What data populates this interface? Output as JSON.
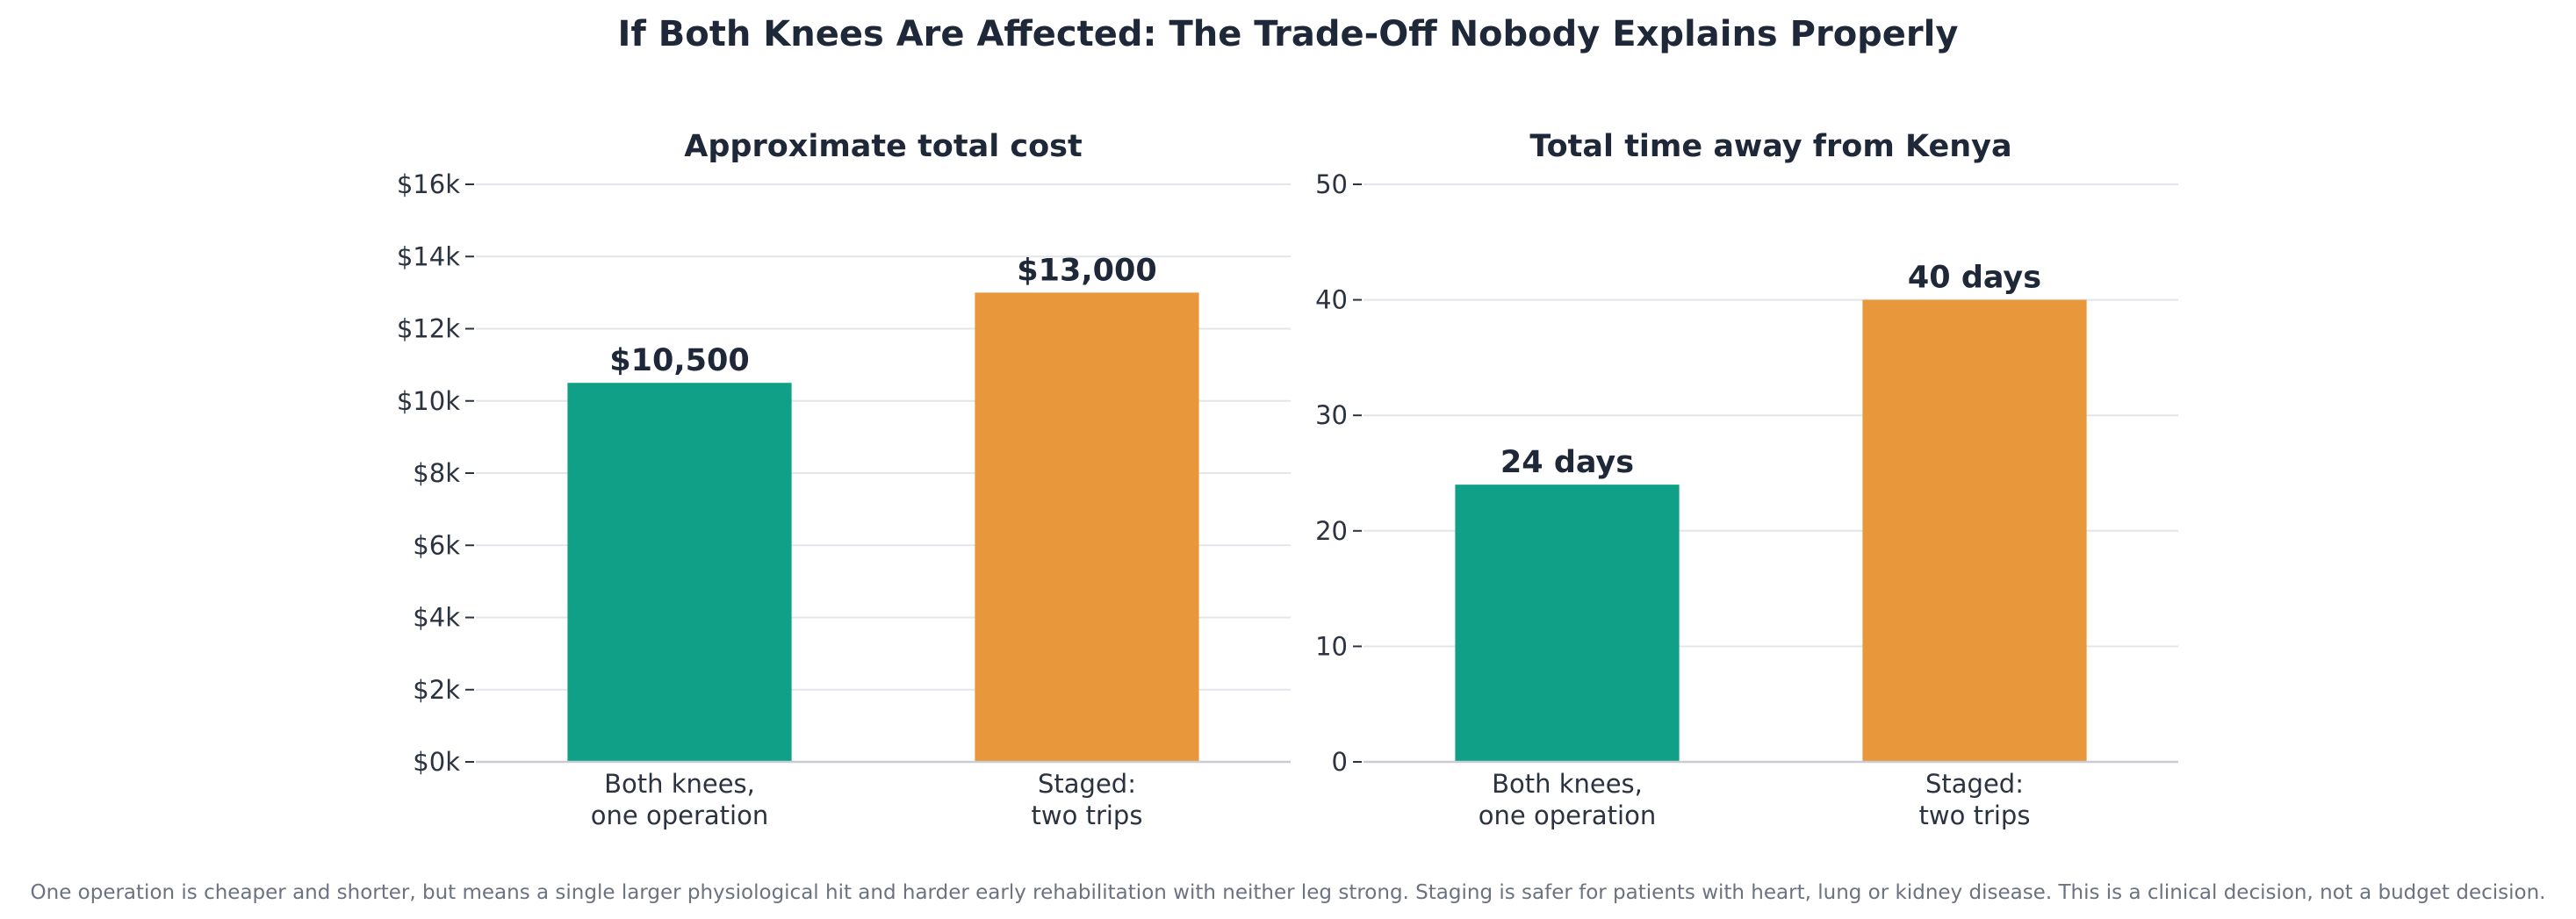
{
  "title": "If Both Knees Are Affected: The Trade-Off Nobody Explains Properly",
  "footnote": "One operation is cheaper and shorter, but means a single larger physiological hit and harder early rehabilitation with neither leg strong. Staging is safer for patients with heart, lung or kidney disease. This is a clinical decision, not a budget decision.",
  "colors": {
    "series_one_operation": "#0fa087",
    "series_staged": "#e8973a",
    "text": "#1e2838"
  },
  "chart_data": [
    {
      "type": "bar",
      "title": "Approximate total cost",
      "categories": [
        [
          "Both knees,",
          "one operation"
        ],
        [
          "Staged:",
          "two trips"
        ]
      ],
      "values": [
        10500,
        13000
      ],
      "value_labels": [
        "$10,500",
        "$13,000"
      ],
      "ylim": [
        0,
        16000
      ],
      "yticks": [
        0,
        2000,
        4000,
        6000,
        8000,
        10000,
        12000,
        14000,
        16000
      ],
      "ytick_labels": [
        "$0k",
        "$2k",
        "$4k",
        "$6k",
        "$8k",
        "$10k",
        "$12k",
        "$14k",
        "$16k"
      ],
      "grid": true
    },
    {
      "type": "bar",
      "title": "Total time away from Kenya",
      "categories": [
        [
          "Both knees,",
          "one operation"
        ],
        [
          "Staged:",
          "two trips"
        ]
      ],
      "values": [
        24,
        40
      ],
      "value_labels": [
        "24 days",
        "40 days"
      ],
      "ylim": [
        0,
        50
      ],
      "yticks": [
        0,
        10,
        20,
        30,
        40,
        50
      ],
      "ytick_labels": [
        "0",
        "10",
        "20",
        "30",
        "40",
        "50"
      ],
      "grid": true
    }
  ]
}
